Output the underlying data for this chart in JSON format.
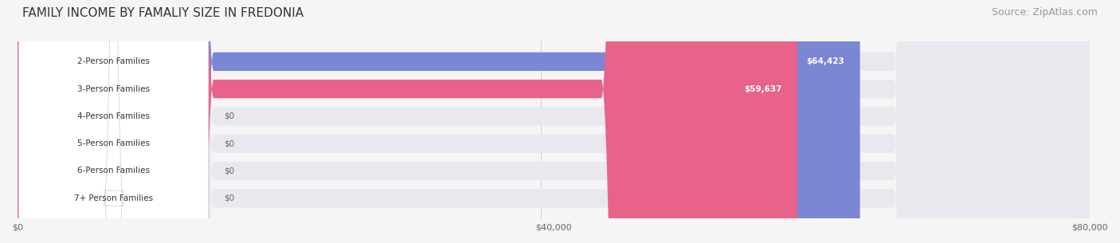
{
  "title": "FAMILY INCOME BY FAMALIY SIZE IN FREDONIA",
  "source": "Source: ZipAtlas.com",
  "categories": [
    "2-Person Families",
    "3-Person Families",
    "4-Person Families",
    "5-Person Families",
    "6-Person Families",
    "7+ Person Families"
  ],
  "values": [
    64423,
    59637,
    0,
    0,
    0,
    0
  ],
  "bar_colors": [
    "#7b86d4",
    "#e8628a",
    "#f5c48a",
    "#e8a0a0",
    "#a0b8e0",
    "#c0a8d8"
  ],
  "label_colors": [
    "#7b86d4",
    "#e8628a",
    "#f5c48a",
    "#e8a0a0",
    "#a0b8e0",
    "#c0a8d8"
  ],
  "value_labels": [
    "$64,423",
    "$59,637",
    "$0",
    "$0",
    "$0",
    "$0"
  ],
  "xlim": [
    0,
    82000
  ],
  "xticks": [
    0,
    40000,
    80000
  ],
  "xticklabels": [
    "$0",
    "$40,000",
    "$80,000"
  ],
  "background_color": "#f5f5f5",
  "bar_background_color": "#ececec",
  "title_fontsize": 11,
  "source_fontsize": 9
}
